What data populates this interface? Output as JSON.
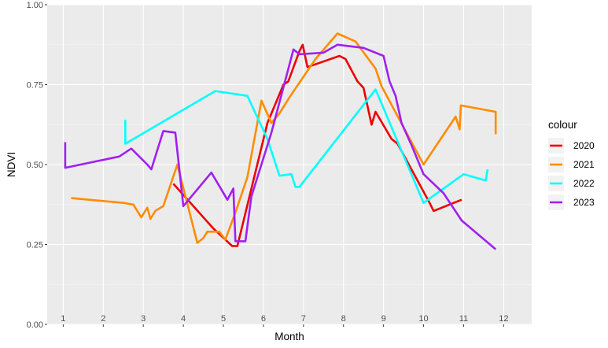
{
  "chart_data": {
    "type": "line",
    "title": "",
    "xlabel": "Month",
    "ylabel": "NDVI",
    "xlim": [
      0.6,
      12.7
    ],
    "ylim": [
      0,
      1
    ],
    "x_ticks": [
      1,
      2,
      3,
      4,
      5,
      6,
      7,
      8,
      9,
      10,
      11,
      12
    ],
    "y_ticks": [
      0,
      0.25,
      0.5,
      0.75,
      1
    ],
    "y_tick_labels": [
      "0.00",
      "0.25",
      "0.50",
      "0.75",
      "1.00"
    ],
    "grid": true,
    "legend": {
      "title": "colour",
      "position": "right"
    },
    "colors": {
      "2020": "#ee0000",
      "2021": "#ff8c00",
      "2022": "#00ffff",
      "2023": "#a020f0"
    },
    "series": [
      {
        "name": "2020",
        "points": [
          [
            3.75,
            0.44
          ],
          [
            4.75,
            0.3
          ],
          [
            5.22,
            0.245
          ],
          [
            5.35,
            0.245
          ],
          [
            6.1,
            0.63
          ],
          [
            6.5,
            0.75
          ],
          [
            6.62,
            0.76
          ],
          [
            6.9,
            0.855
          ],
          [
            6.98,
            0.875
          ],
          [
            7.1,
            0.805
          ],
          [
            7.9,
            0.84
          ],
          [
            8.05,
            0.83
          ],
          [
            8.35,
            0.76
          ],
          [
            8.5,
            0.74
          ],
          [
            8.7,
            0.625
          ],
          [
            8.8,
            0.665
          ],
          [
            9.2,
            0.58
          ],
          [
            9.35,
            0.565
          ],
          [
            10.15,
            0.38
          ],
          [
            10.25,
            0.355
          ],
          [
            10.95,
            0.39
          ]
        ]
      },
      {
        "name": "2021",
        "points": [
          [
            1.2,
            0.395
          ],
          [
            2.5,
            0.38
          ],
          [
            2.75,
            0.375
          ],
          [
            2.85,
            0.355
          ],
          [
            2.95,
            0.335
          ],
          [
            3.1,
            0.365
          ],
          [
            3.18,
            0.33
          ],
          [
            3.3,
            0.355
          ],
          [
            3.5,
            0.37
          ],
          [
            3.85,
            0.5
          ],
          [
            4.35,
            0.255
          ],
          [
            4.5,
            0.27
          ],
          [
            4.6,
            0.29
          ],
          [
            4.9,
            0.29
          ],
          [
            5.05,
            0.265
          ],
          [
            5.3,
            0.35
          ],
          [
            5.6,
            0.46
          ],
          [
            5.95,
            0.7
          ],
          [
            6.2,
            0.63
          ],
          [
            6.4,
            0.66
          ],
          [
            6.65,
            0.71
          ],
          [
            7.3,
            0.83
          ],
          [
            7.85,
            0.91
          ],
          [
            8.3,
            0.885
          ],
          [
            8.8,
            0.8
          ],
          [
            8.95,
            0.745
          ],
          [
            10.0,
            0.5
          ],
          [
            10.8,
            0.65
          ],
          [
            10.9,
            0.61
          ],
          [
            10.93,
            0.685
          ],
          [
            11.8,
            0.665
          ],
          [
            11.8,
            0.595
          ]
        ]
      },
      {
        "name": "2022",
        "points": [
          [
            2.55,
            0.64
          ],
          [
            2.55,
            0.565
          ],
          [
            4.8,
            0.73
          ],
          [
            5.6,
            0.715
          ],
          [
            6.1,
            0.58
          ],
          [
            6.4,
            0.465
          ],
          [
            6.7,
            0.47
          ],
          [
            6.8,
            0.43
          ],
          [
            6.9,
            0.43
          ],
          [
            8.8,
            0.735
          ],
          [
            10.0,
            0.38
          ],
          [
            11.0,
            0.47
          ],
          [
            11.55,
            0.45
          ],
          [
            11.6,
            0.485
          ]
        ]
      },
      {
        "name": "2023",
        "points": [
          [
            1.05,
            0.57
          ],
          [
            1.05,
            0.49
          ],
          [
            2.4,
            0.525
          ],
          [
            2.7,
            0.55
          ],
          [
            3.1,
            0.5
          ],
          [
            3.2,
            0.485
          ],
          [
            3.5,
            0.605
          ],
          [
            3.8,
            0.6
          ],
          [
            4.0,
            0.37
          ],
          [
            4.7,
            0.475
          ],
          [
            5.1,
            0.39
          ],
          [
            5.25,
            0.425
          ],
          [
            5.3,
            0.26
          ],
          [
            5.55,
            0.26
          ],
          [
            5.7,
            0.4
          ],
          [
            6.2,
            0.6
          ],
          [
            6.75,
            0.86
          ],
          [
            6.9,
            0.845
          ],
          [
            7.5,
            0.85
          ],
          [
            7.85,
            0.875
          ],
          [
            8.5,
            0.865
          ],
          [
            9.0,
            0.84
          ],
          [
            9.15,
            0.76
          ],
          [
            9.3,
            0.715
          ],
          [
            9.45,
            0.63
          ],
          [
            9.7,
            0.56
          ],
          [
            10.0,
            0.47
          ],
          [
            10.5,
            0.41
          ],
          [
            10.95,
            0.325
          ],
          [
            11.8,
            0.235
          ]
        ]
      }
    ]
  }
}
